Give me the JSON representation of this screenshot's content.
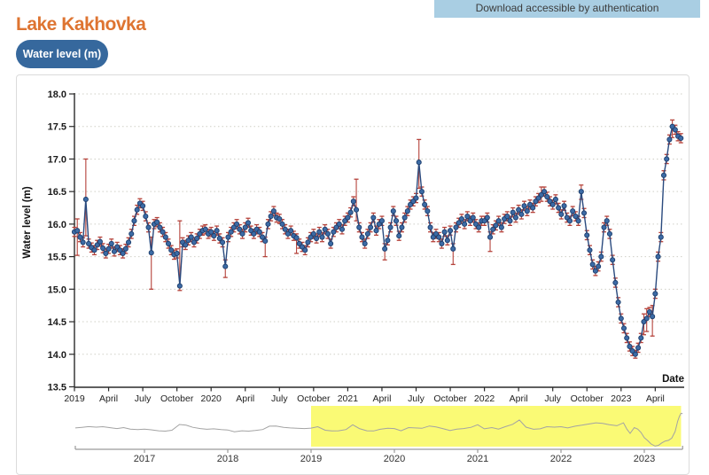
{
  "header": {
    "title": "Lake Kakhovka",
    "download_button": "Download accessible by authentication",
    "series_pill": "Water level (m)"
  },
  "colors": {
    "title_orange": "#de7431",
    "pill_blue": "#36689d",
    "download_bg": "#a9cee3",
    "marker_fill": "#3c6ba5",
    "marker_edge": "#1e3e6d",
    "line_blue": "#2a4a7e",
    "error_red": "#b5423a",
    "grid": "#cfcfc6",
    "axis": "#2a2a2a",
    "overview_line": "#a3a3a3",
    "overview_axis": "#9a9a9a",
    "selection_yellow": "#f9f966",
    "panel_border": "#dbdbdb"
  },
  "chart_data": {
    "type": "line",
    "title": "Lake Kakhovka water level",
    "series_name": "Water level (m)",
    "xlabel": "Date",
    "ylabel": "Water level (m)",
    "units": "m",
    "ylim": [
      13.5,
      18.0
    ],
    "grid": "dotted-horizontal",
    "x_range": [
      "2019-01",
      "2023-06"
    ],
    "y_ticks": [
      "18.0",
      "17.5",
      "17.0",
      "16.5",
      "16.0",
      "15.5",
      "15.0",
      "14.5",
      "14.0",
      "13.5"
    ],
    "x_ticks": [
      [
        0,
        "2019"
      ],
      [
        3,
        "April"
      ],
      [
        6,
        "July"
      ],
      [
        9,
        "October"
      ],
      [
        12,
        "2020"
      ],
      [
        15,
        "April"
      ],
      [
        18,
        "July"
      ],
      [
        21,
        "October"
      ],
      [
        24,
        "2021"
      ],
      [
        27,
        "April"
      ],
      [
        30,
        "July"
      ],
      [
        33,
        "October"
      ],
      [
        36,
        "2022"
      ],
      [
        39,
        "April"
      ],
      [
        42,
        "July"
      ],
      [
        45,
        "October"
      ],
      [
        48,
        "2023"
      ],
      [
        51,
        "April"
      ]
    ],
    "sample_interval_months": 0.25,
    "default_error": 0.07,
    "values": [
      15.88,
      15.9,
      15.8,
      15.72,
      16.38,
      15.7,
      15.64,
      15.6,
      15.68,
      15.73,
      15.63,
      15.55,
      15.62,
      15.7,
      15.58,
      15.65,
      15.6,
      15.55,
      15.62,
      15.72,
      15.85,
      16.05,
      16.22,
      16.32,
      16.28,
      16.12,
      15.95,
      15.56,
      16.0,
      16.03,
      15.95,
      15.88,
      15.8,
      15.7,
      15.6,
      15.53,
      15.55,
      15.05,
      15.72,
      15.68,
      15.75,
      15.8,
      15.72,
      15.78,
      15.85,
      15.9,
      15.92,
      15.85,
      15.88,
      15.82,
      15.9,
      15.78,
      15.72,
      15.35,
      15.8,
      15.88,
      15.95,
      16.0,
      15.92,
      15.85,
      15.95,
      16.02,
      15.9,
      15.85,
      15.92,
      15.88,
      15.8,
      15.74,
      16.0,
      16.12,
      16.2,
      16.1,
      16.08,
      16.0,
      15.92,
      15.85,
      15.9,
      15.82,
      15.79,
      15.7,
      15.65,
      15.6,
      15.72,
      15.8,
      15.85,
      15.78,
      15.88,
      15.8,
      15.92,
      15.85,
      15.7,
      15.88,
      15.95,
      16.0,
      15.92,
      16.05,
      16.1,
      16.18,
      16.35,
      16.22,
      15.95,
      15.8,
      15.7,
      15.85,
      15.95,
      16.1,
      15.9,
      16.0,
      16.05,
      15.62,
      15.75,
      15.95,
      16.2,
      16.05,
      15.82,
      15.95,
      16.1,
      16.2,
      16.3,
      16.35,
      16.4,
      16.95,
      16.5,
      16.3,
      16.2,
      15.95,
      15.8,
      15.85,
      15.8,
      15.7,
      15.88,
      15.75,
      15.9,
      15.62,
      15.95,
      16.02,
      16.08,
      16.0,
      16.12,
      16.05,
      16.1,
      16.0,
      15.95,
      16.05,
      16.05,
      16.1,
      15.8,
      15.92,
      15.98,
      16.05,
      15.95,
      16.08,
      16.12,
      16.05,
      16.18,
      16.1,
      16.22,
      16.15,
      16.28,
      16.2,
      16.3,
      16.25,
      16.35,
      16.4,
      16.45,
      16.5,
      16.42,
      16.35,
      16.3,
      16.38,
      16.25,
      16.15,
      16.28,
      16.1,
      16.05,
      16.2,
      16.12,
      16.05,
      16.5,
      16.17,
      15.83,
      15.6,
      15.38,
      15.28,
      15.35,
      15.5,
      15.95,
      16.05,
      15.85,
      15.45,
      15.1,
      14.8,
      14.55,
      14.4,
      14.25,
      14.12,
      14.05,
      14.0,
      14.1,
      14.25,
      14.5,
      14.55,
      14.65,
      14.58,
      14.93,
      15.5,
      15.8,
      16.75,
      17.0,
      17.3,
      17.5,
      17.45,
      17.35,
      17.32
    ],
    "special_error_bars": {
      "1": [
        15.52,
        16.08
      ],
      "4": [
        15.82,
        17.0
      ],
      "27": [
        15.0,
        15.8
      ],
      "37": [
        14.98,
        16.05
      ],
      "53": [
        15.18,
        15.45
      ],
      "67": [
        15.5,
        15.8
      ],
      "78": [
        15.55,
        15.85
      ],
      "99": [
        16.05,
        16.69
      ],
      "109": [
        15.45,
        15.7
      ],
      "121": [
        16.55,
        17.3
      ],
      "133": [
        15.38,
        15.7
      ],
      "146": [
        15.58,
        15.88
      ],
      "164": [
        16.35,
        16.57
      ],
      "178": [
        16.38,
        16.6
      ],
      "197": [
        13.94,
        14.06
      ],
      "200": [
        14.3,
        14.62
      ],
      "201": [
        14.35,
        14.7
      ],
      "203": [
        14.28,
        14.75
      ],
      "210": [
        17.33,
        17.6
      ]
    },
    "overview": {
      "x_tick_labels": [
        "2017",
        "2018",
        "2019",
        "2020",
        "2021",
        "2022",
        "2023"
      ],
      "x_tick_years": [
        2017,
        2018,
        2019,
        2020,
        2021,
        2022,
        2023
      ],
      "x_range_years": [
        2016.17,
        2023.46
      ],
      "selection_window_years": [
        2019.0,
        2023.42
      ],
      "line": [
        [
          2016.17,
          15.92
        ],
        [
          2016.25,
          15.98
        ],
        [
          2016.33,
          16.06
        ],
        [
          2016.42,
          16.0
        ],
        [
          2016.5,
          16.05
        ],
        [
          2016.58,
          15.95
        ],
        [
          2016.67,
          15.85
        ],
        [
          2016.75,
          15.95
        ],
        [
          2016.83,
          15.8
        ],
        [
          2016.92,
          15.75
        ],
        [
          2017.0,
          15.8
        ],
        [
          2017.08,
          15.72
        ],
        [
          2017.17,
          15.62
        ],
        [
          2017.25,
          15.58
        ],
        [
          2017.33,
          15.68
        ],
        [
          2017.42,
          16.28
        ],
        [
          2017.5,
          16.2
        ],
        [
          2017.58,
          15.98
        ],
        [
          2017.67,
          15.85
        ],
        [
          2017.75,
          15.78
        ],
        [
          2017.83,
          15.82
        ],
        [
          2017.92,
          15.75
        ],
        [
          2018.0,
          15.7
        ],
        [
          2018.08,
          15.52
        ],
        [
          2018.17,
          15.62
        ],
        [
          2018.25,
          15.58
        ],
        [
          2018.33,
          15.65
        ],
        [
          2018.42,
          15.75
        ],
        [
          2018.5,
          16.1
        ],
        [
          2018.58,
          16.12
        ],
        [
          2018.67,
          15.98
        ],
        [
          2018.75,
          15.92
        ],
        [
          2018.83,
          15.88
        ],
        [
          2018.92,
          15.85
        ],
        [
          2019.0,
          15.9
        ],
        [
          2019.08,
          16.05
        ],
        [
          2019.17,
          15.68
        ],
        [
          2019.25,
          15.6
        ],
        [
          2019.33,
          15.62
        ],
        [
          2019.42,
          15.75
        ],
        [
          2019.5,
          16.25
        ],
        [
          2019.58,
          15.85
        ],
        [
          2019.67,
          15.62
        ],
        [
          2019.75,
          15.6
        ],
        [
          2019.83,
          15.78
        ],
        [
          2019.92,
          15.88
        ],
        [
          2020.0,
          15.85
        ],
        [
          2020.08,
          15.62
        ],
        [
          2020.17,
          15.95
        ],
        [
          2020.25,
          15.92
        ],
        [
          2020.33,
          15.88
        ],
        [
          2020.42,
          16.12
        ],
        [
          2020.5,
          16.02
        ],
        [
          2020.58,
          15.85
        ],
        [
          2020.67,
          15.65
        ],
        [
          2020.75,
          15.8
        ],
        [
          2020.83,
          15.85
        ],
        [
          2020.92,
          15.98
        ],
        [
          2021.0,
          16.25
        ],
        [
          2021.08,
          15.82
        ],
        [
          2021.17,
          15.95
        ],
        [
          2021.25,
          15.8
        ],
        [
          2021.33,
          16.05
        ],
        [
          2021.42,
          16.3
        ],
        [
          2021.5,
          16.75
        ],
        [
          2021.58,
          16.0
        ],
        [
          2021.67,
          15.78
        ],
        [
          2021.75,
          15.82
        ],
        [
          2021.83,
          16.05
        ],
        [
          2021.92,
          16.0
        ],
        [
          2022.0,
          16.05
        ],
        [
          2022.08,
          15.92
        ],
        [
          2022.17,
          16.1
        ],
        [
          2022.25,
          16.2
        ],
        [
          2022.33,
          16.32
        ],
        [
          2022.42,
          16.45
        ],
        [
          2022.5,
          16.4
        ],
        [
          2022.58,
          16.25
        ],
        [
          2022.67,
          16.15
        ],
        [
          2022.75,
          16.45
        ],
        [
          2022.79,
          15.8
        ],
        [
          2022.83,
          15.35
        ],
        [
          2022.88,
          15.95
        ],
        [
          2022.92,
          15.8
        ],
        [
          2022.96,
          15.45
        ],
        [
          2023.0,
          14.9
        ],
        [
          2023.04,
          14.6
        ],
        [
          2023.08,
          14.25
        ],
        [
          2023.13,
          14.02
        ],
        [
          2023.17,
          14.1
        ],
        [
          2023.21,
          14.35
        ],
        [
          2023.25,
          14.55
        ],
        [
          2023.29,
          14.62
        ],
        [
          2023.33,
          14.85
        ],
        [
          2023.37,
          15.55
        ],
        [
          2023.4,
          16.6
        ],
        [
          2023.42,
          17.1
        ],
        [
          2023.44,
          17.45
        ],
        [
          2023.46,
          17.4
        ]
      ]
    }
  }
}
